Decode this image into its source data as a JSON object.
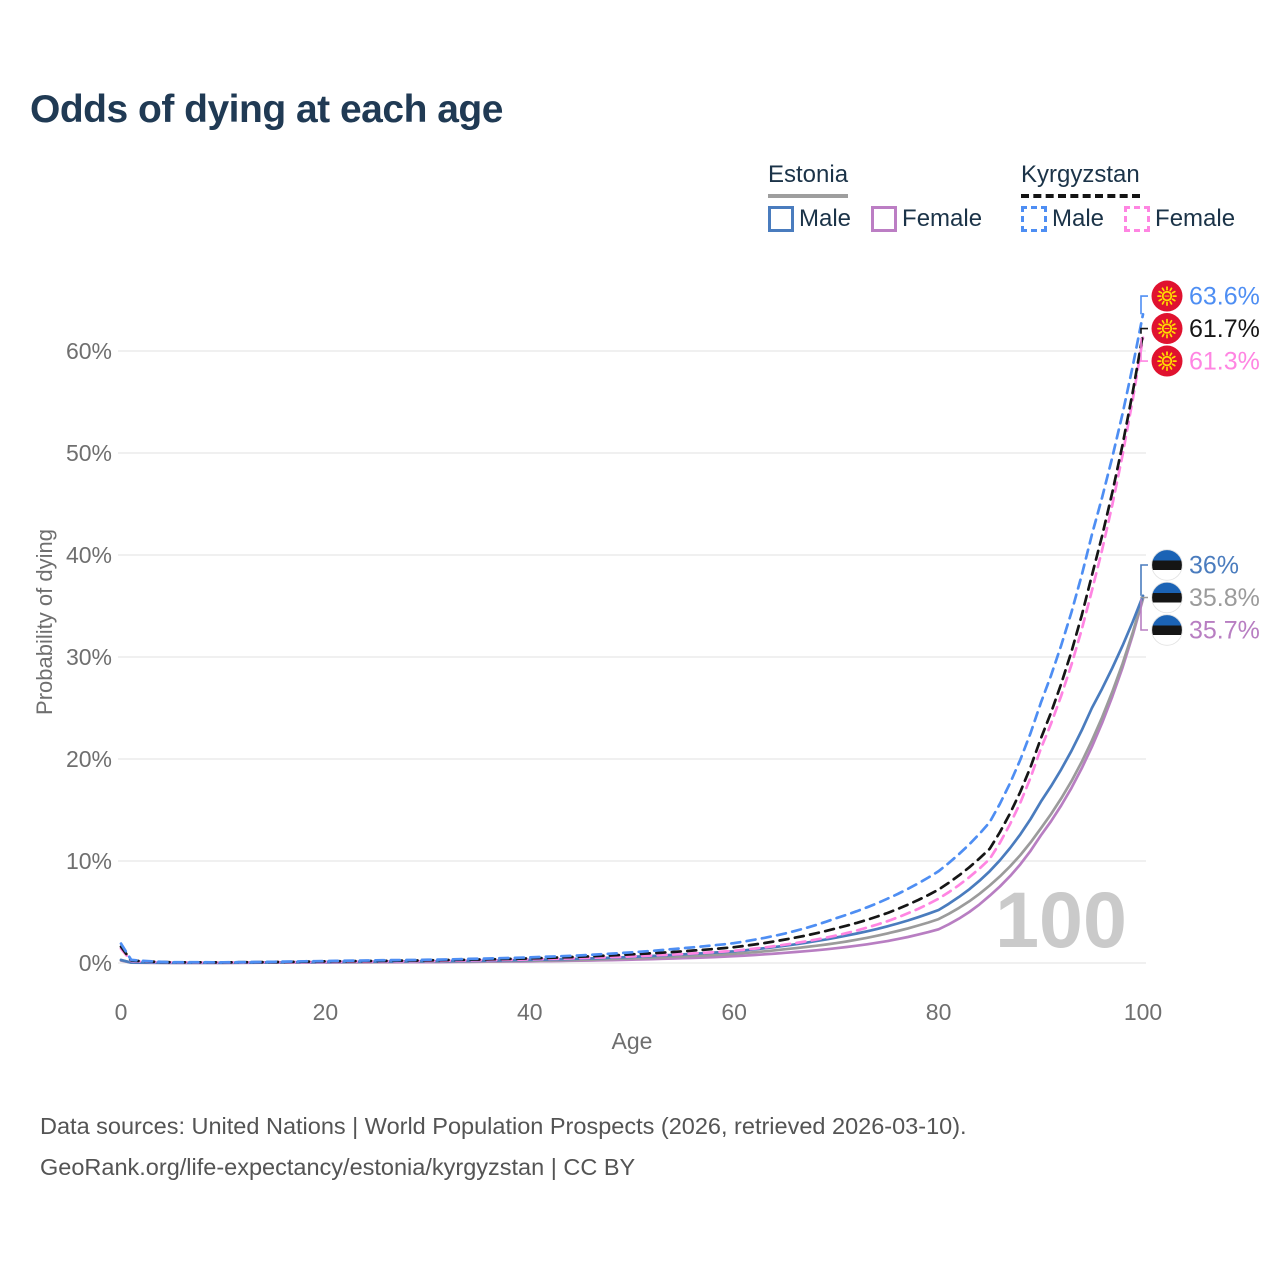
{
  "title": "Odds of dying at each age",
  "legend": {
    "groups": [
      {
        "id": "estonia",
        "title": "Estonia",
        "underline_style": "solid",
        "underline_color": "#9e9e9e",
        "items": [
          {
            "label": "Male",
            "color": "#4a7cbe",
            "style": "solid"
          },
          {
            "label": "Female",
            "color": "#bc7ec4",
            "style": "solid"
          }
        ]
      },
      {
        "id": "kyrgyzstan",
        "title": "Kyrgyzstan",
        "underline_style": "dashed",
        "underline_color": "#141414",
        "items": [
          {
            "label": "Male",
            "color": "#4e8ef3",
            "style": "dashed"
          },
          {
            "label": "Female",
            "color": "#ff85e2",
            "style": "dashed"
          }
        ]
      }
    ]
  },
  "chart_data": {
    "type": "line",
    "title": "Odds of dying at each age",
    "xlabel": "Age",
    "ylabel": "Probability of dying",
    "xlim": [
      0,
      100
    ],
    "ylim": [
      0,
      66
    ],
    "x_ticks": [
      0,
      20,
      40,
      60,
      80,
      100
    ],
    "y_ticks": [
      0,
      10,
      20,
      30,
      40,
      50,
      60
    ],
    "y_tick_suffix": "%",
    "grid": "horizontal",
    "watermark": "100",
    "series": [
      {
        "id": "estonia-female",
        "name": "Estonia Female",
        "country": "estonia",
        "sex": "female",
        "line_style": "solid",
        "color": "#b87ec2",
        "end_label": "35.7%",
        "end_value": 35.7,
        "points": [
          [
            0,
            0.24
          ],
          [
            1,
            0.03
          ],
          [
            5,
            0.012
          ],
          [
            10,
            0.012
          ],
          [
            15,
            0.03
          ],
          [
            20,
            0.05
          ],
          [
            25,
            0.065
          ],
          [
            30,
            0.085
          ],
          [
            35,
            0.12
          ],
          [
            40,
            0.16
          ],
          [
            45,
            0.23
          ],
          [
            50,
            0.33
          ],
          [
            55,
            0.47
          ],
          [
            60,
            0.67
          ],
          [
            65,
            1.0
          ],
          [
            70,
            1.45
          ],
          [
            75,
            2.15
          ],
          [
            80,
            3.3
          ],
          [
            85,
            6.6
          ],
          [
            90,
            12.5
          ],
          [
            95,
            21.2
          ],
          [
            100,
            35.7
          ]
        ]
      },
      {
        "id": "estonia-both",
        "name": "Estonia",
        "country": "estonia",
        "sex": "all",
        "line_style": "solid",
        "color": "#9b9b9b",
        "end_label": "35.8%",
        "end_value": 35.8,
        "points": [
          [
            0,
            0.27
          ],
          [
            1,
            0.035
          ],
          [
            5,
            0.015
          ],
          [
            10,
            0.015
          ],
          [
            15,
            0.045
          ],
          [
            20,
            0.08
          ],
          [
            25,
            0.1
          ],
          [
            30,
            0.13
          ],
          [
            35,
            0.17
          ],
          [
            40,
            0.22
          ],
          [
            45,
            0.31
          ],
          [
            50,
            0.45
          ],
          [
            55,
            0.65
          ],
          [
            60,
            0.9
          ],
          [
            65,
            1.35
          ],
          [
            70,
            1.95
          ],
          [
            75,
            2.9
          ],
          [
            80,
            4.3
          ],
          [
            85,
            7.6
          ],
          [
            90,
            13.2
          ],
          [
            95,
            21.8
          ],
          [
            100,
            35.8
          ]
        ]
      },
      {
        "id": "estonia-male",
        "name": "Estonia Male",
        "country": "estonia",
        "sex": "male",
        "line_style": "solid",
        "color": "#4a7cbe",
        "end_label": "36%",
        "end_value": 36.0,
        "points": [
          [
            0,
            0.3
          ],
          [
            1,
            0.04
          ],
          [
            5,
            0.02
          ],
          [
            10,
            0.02
          ],
          [
            15,
            0.06
          ],
          [
            20,
            0.1
          ],
          [
            25,
            0.13
          ],
          [
            30,
            0.17
          ],
          [
            35,
            0.22
          ],
          [
            40,
            0.3
          ],
          [
            45,
            0.42
          ],
          [
            50,
            0.6
          ],
          [
            55,
            0.85
          ],
          [
            60,
            1.15
          ],
          [
            65,
            1.7
          ],
          [
            70,
            2.5
          ],
          [
            75,
            3.6
          ],
          [
            80,
            5.2
          ],
          [
            85,
            9.0
          ],
          [
            90,
            15.8
          ],
          [
            95,
            25.0
          ],
          [
            100,
            36.0
          ]
        ]
      },
      {
        "id": "kyrgyzstan-female",
        "name": "Kyrgyzstan Female",
        "country": "kyrgyzstan",
        "sex": "female",
        "line_style": "dashed",
        "color": "#ff85e2",
        "end_label": "61.3%",
        "end_value": 61.3,
        "points": [
          [
            0,
            1.4
          ],
          [
            1,
            0.2
          ],
          [
            5,
            0.06
          ],
          [
            10,
            0.05
          ],
          [
            15,
            0.08
          ],
          [
            20,
            0.11
          ],
          [
            25,
            0.15
          ],
          [
            30,
            0.2
          ],
          [
            35,
            0.26
          ],
          [
            40,
            0.35
          ],
          [
            45,
            0.48
          ],
          [
            50,
            0.65
          ],
          [
            55,
            0.88
          ],
          [
            60,
            1.2
          ],
          [
            65,
            1.8
          ],
          [
            70,
            2.7
          ],
          [
            75,
            4.1
          ],
          [
            80,
            6.3
          ],
          [
            85,
            10.2
          ],
          [
            90,
            21.0
          ],
          [
            95,
            36.5
          ],
          [
            100,
            61.3
          ]
        ]
      },
      {
        "id": "kyrgyzstan-both",
        "name": "Kyrgyzstan",
        "country": "kyrgyzstan",
        "sex": "all",
        "line_style": "dashed",
        "color": "#161616",
        "end_label": "61.7%",
        "end_value": 61.7,
        "points": [
          [
            0,
            1.6
          ],
          [
            1,
            0.25
          ],
          [
            5,
            0.07
          ],
          [
            10,
            0.06
          ],
          [
            15,
            0.1
          ],
          [
            20,
            0.16
          ],
          [
            25,
            0.2
          ],
          [
            30,
            0.26
          ],
          [
            35,
            0.34
          ],
          [
            40,
            0.45
          ],
          [
            45,
            0.62
          ],
          [
            50,
            0.85
          ],
          [
            55,
            1.15
          ],
          [
            60,
            1.55
          ],
          [
            65,
            2.3
          ],
          [
            70,
            3.4
          ],
          [
            75,
            4.9
          ],
          [
            80,
            7.2
          ],
          [
            85,
            11.2
          ],
          [
            90,
            22.0
          ],
          [
            95,
            38.0
          ],
          [
            100,
            61.7
          ]
        ]
      },
      {
        "id": "kyrgyzstan-male",
        "name": "Kyrgyzstan Male",
        "country": "kyrgyzstan",
        "sex": "male",
        "line_style": "dashed",
        "color": "#4e8ef3",
        "end_label": "63.6%",
        "end_value": 63.6,
        "points": [
          [
            0,
            1.9
          ],
          [
            1,
            0.3
          ],
          [
            5,
            0.08
          ],
          [
            10,
            0.07
          ],
          [
            15,
            0.12
          ],
          [
            20,
            0.2
          ],
          [
            25,
            0.26
          ],
          [
            30,
            0.32
          ],
          [
            35,
            0.42
          ],
          [
            40,
            0.55
          ],
          [
            45,
            0.75
          ],
          [
            50,
            1.05
          ],
          [
            55,
            1.45
          ],
          [
            60,
            1.95
          ],
          [
            65,
            2.9
          ],
          [
            70,
            4.4
          ],
          [
            75,
            6.3
          ],
          [
            80,
            9.0
          ],
          [
            85,
            13.8
          ],
          [
            90,
            25.5
          ],
          [
            95,
            42.0
          ],
          [
            100,
            63.6
          ]
        ]
      }
    ],
    "flag_colors": {
      "estonia_blue": "#1b63b5",
      "estonia_black": "#151515",
      "estonia_white": "#ffffff",
      "kyrgyzstan_red": "#e0122f",
      "kyrgyzstan_yellow": "#ffdd00"
    },
    "axis_color": "#6f6f6f",
    "grid_color": "#ececec",
    "watermark_color": "#cacaca"
  },
  "footer": {
    "line1": "Data sources: United Nations | World Population Prospects (2026, retrieved 2026-03-10).",
    "line2": "GeoRank.org/life-expectancy/estonia/kyrgyzstan | CC BY"
  }
}
